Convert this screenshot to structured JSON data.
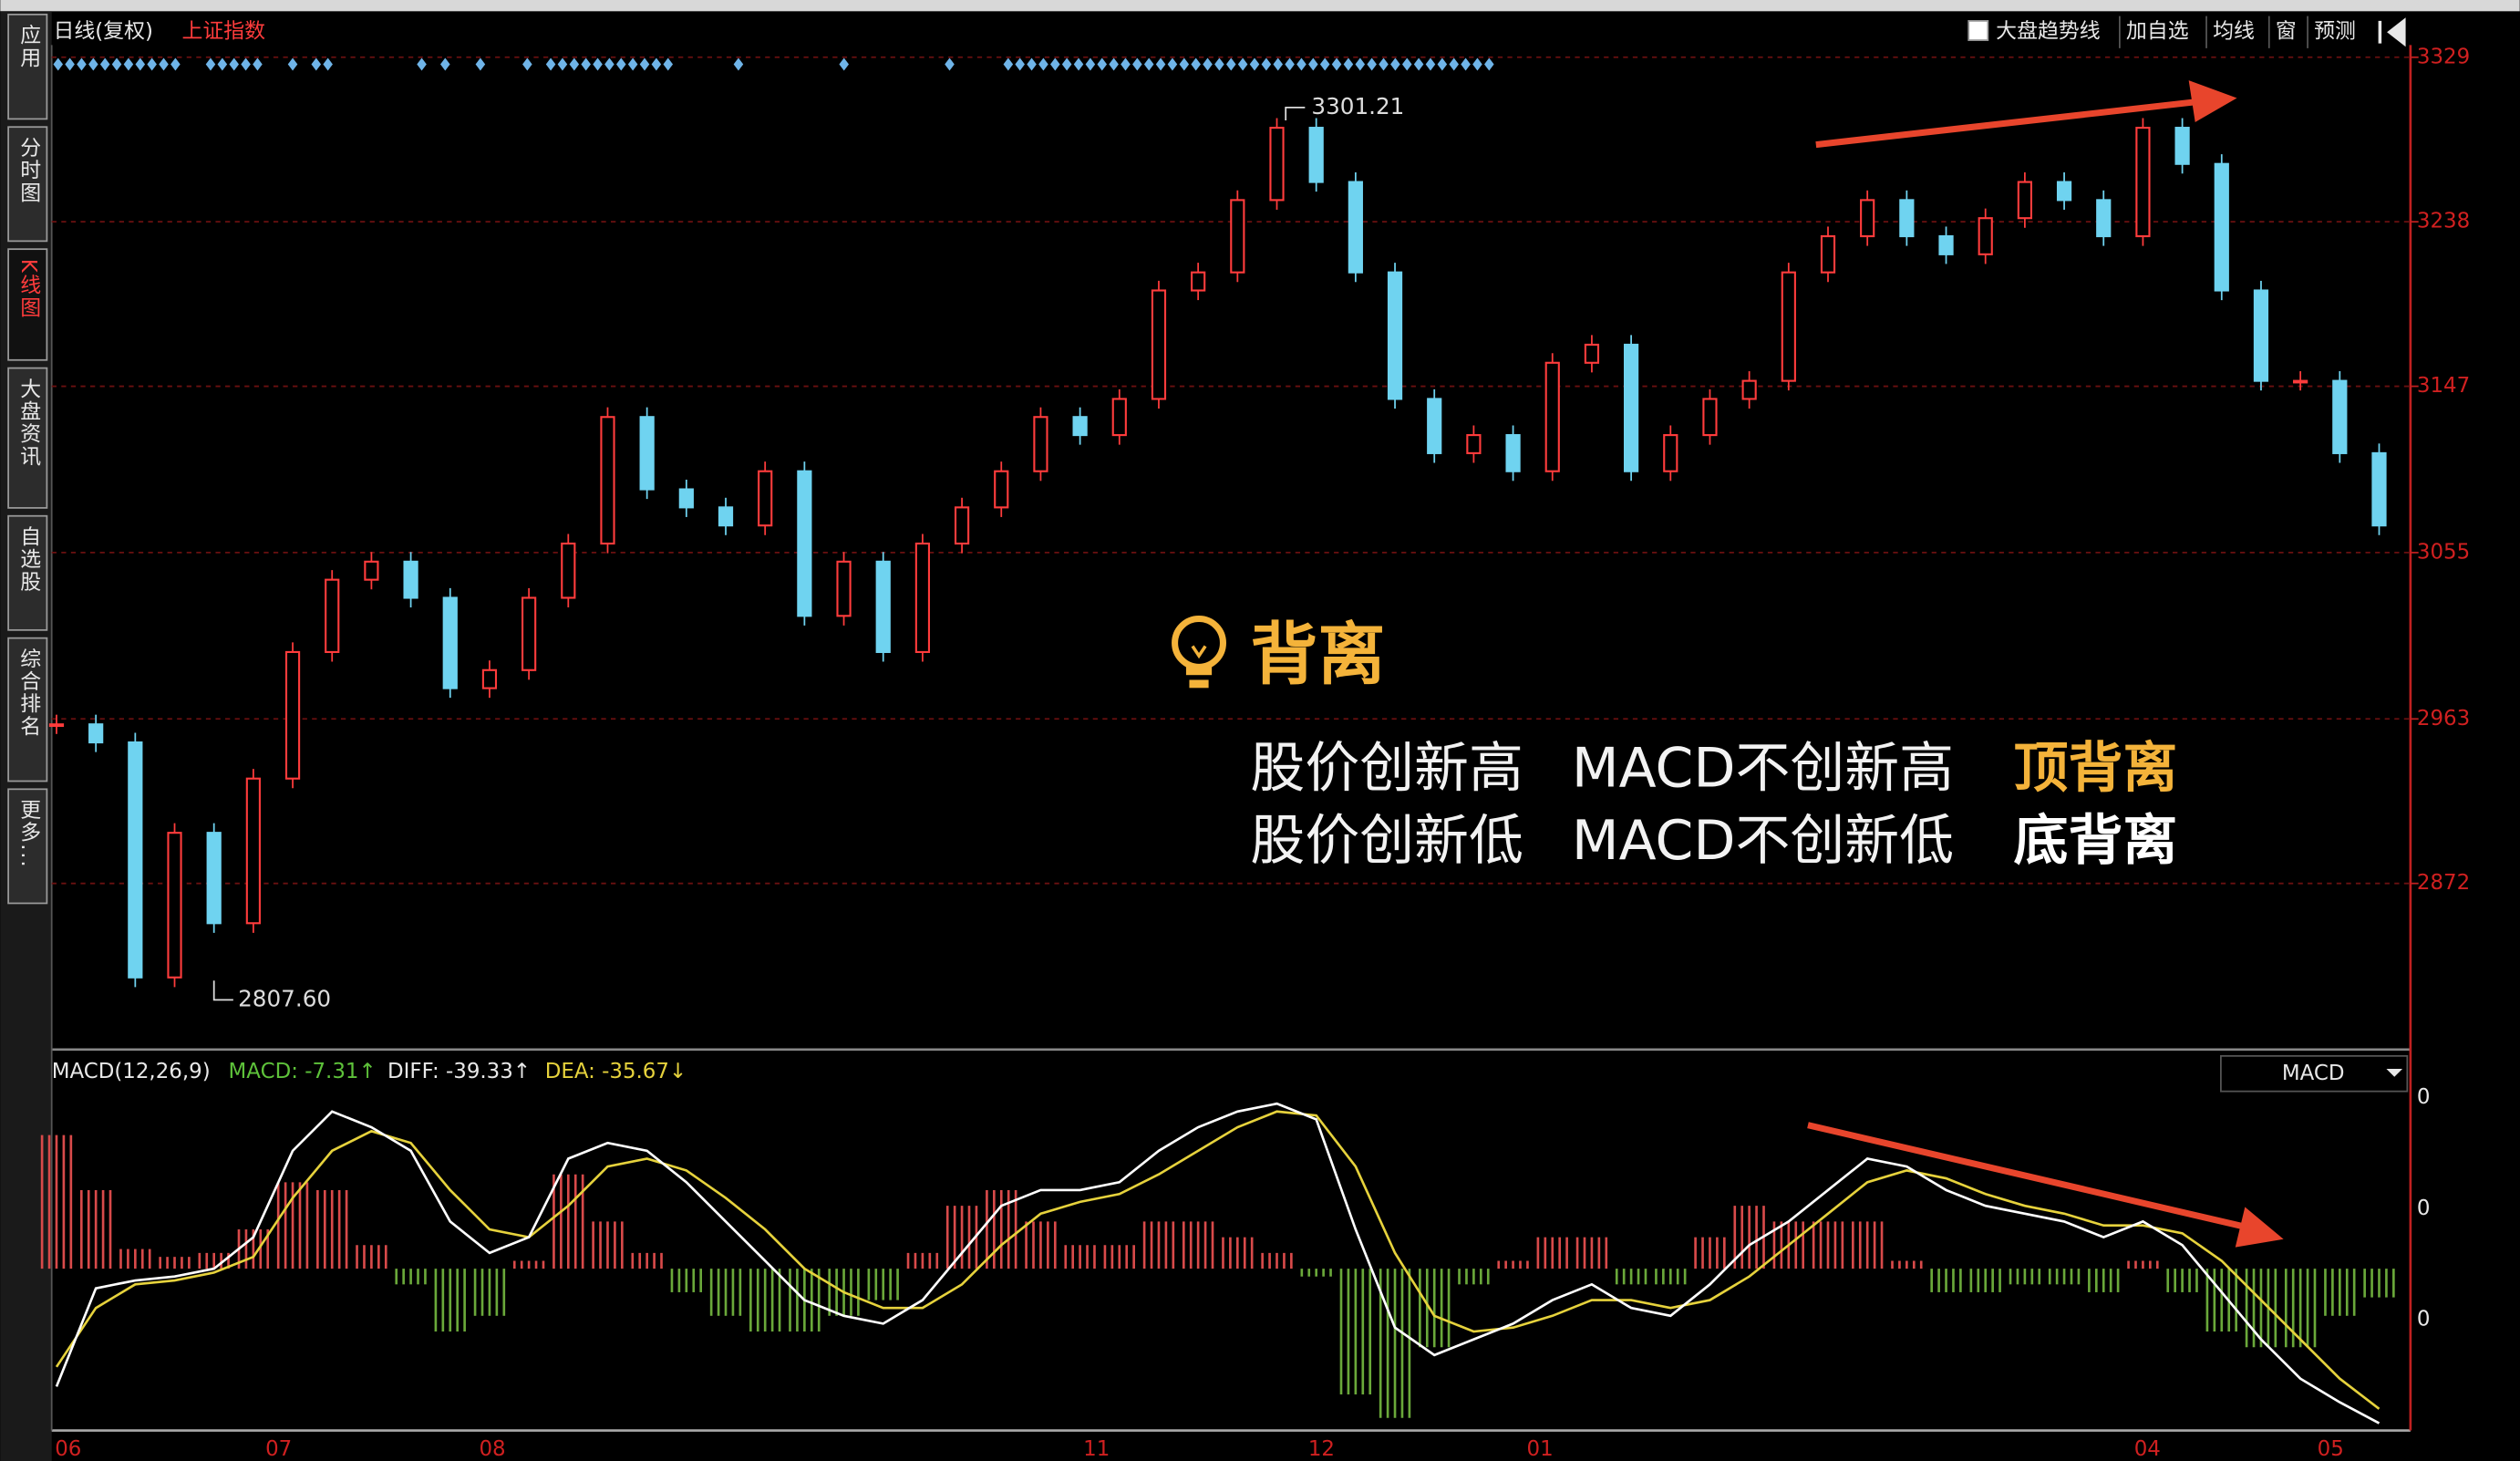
{
  "sidebar": {
    "tabs": [
      "应用",
      "分时图",
      "K线图",
      "大盘资讯",
      "自选股",
      "综合排名",
      "更多..."
    ],
    "active": 2
  },
  "header": {
    "period": "日线(复权)",
    "index": "上证指数"
  },
  "toolbar": [
    "大盘趋势线",
    "加自选",
    "均线",
    "窗",
    "预测"
  ],
  "price_chart": {
    "type": "candlestick",
    "closes": [
      2960,
      2950,
      2820,
      2900,
      2850,
      2930,
      3000,
      3040,
      3050,
      3030,
      2980,
      2990,
      3030,
      3060,
      3130,
      3090,
      3080,
      3070,
      3100,
      3020,
      3050,
      3000,
      3060,
      3080,
      3100,
      3130,
      3120,
      3140,
      3200,
      3210,
      3250,
      3290,
      3260,
      3210,
      3140,
      3110,
      3120,
      3100,
      3160,
      3170,
      3100,
      3120,
      3140,
      3150,
      3210,
      3230,
      3250,
      3230,
      3220,
      3240,
      3260,
      3250,
      3230,
      3290,
      3270,
      3200,
      3150,
      3150,
      3110,
      3070
    ],
    "up_color": "#ff3c3c",
    "down_color": "#6fd3f0",
    "ylim": [
      2781,
      3334
    ],
    "yticks": [
      3329,
      3238,
      3147,
      3055,
      2963,
      2872
    ],
    "high": {
      "value": 3301.21,
      "label": "3301.21"
    },
    "low": {
      "value": 2807.6,
      "label": "2807.60"
    },
    "grid": true
  },
  "macd_chart": {
    "type": "macd",
    "title": "MACD(12,26,9)",
    "macd_label": "MACD: -7.31↑",
    "diff_label": "DIFF: -39.33↑",
    "dea_label": "DEA: -35.67↓",
    "selector": "MACD",
    "axis_labels": [
      "0",
      "0",
      "0"
    ],
    "ylim": [
      -42,
      48
    ],
    "diff": [
      -30,
      -5,
      -3,
      -2,
      0,
      8,
      30,
      40,
      36,
      30,
      12,
      4,
      8,
      28,
      32,
      30,
      22,
      12,
      2,
      -8,
      -12,
      -14,
      -8,
      4,
      16,
      20,
      20,
      22,
      30,
      36,
      40,
      42,
      38,
      10,
      -15,
      -22,
      -18,
      -14,
      -8,
      -4,
      -10,
      -12,
      -4,
      6,
      12,
      20,
      28,
      26,
      20,
      16,
      14,
      12,
      8,
      12,
      6,
      -6,
      -18,
      -28,
      -34,
      -39.33
    ],
    "dea": [
      -25,
      -10,
      -4,
      -3,
      -1,
      3,
      18,
      30,
      35,
      32,
      20,
      10,
      8,
      16,
      26,
      28,
      25,
      18,
      10,
      0,
      -6,
      -10,
      -10,
      -4,
      6,
      14,
      17,
      19,
      24,
      30,
      36,
      40,
      39,
      26,
      4,
      -12,
      -16,
      -15,
      -12,
      -8,
      -8,
      -10,
      -8,
      -2,
      6,
      14,
      22,
      25,
      23,
      19,
      16,
      14,
      11,
      11,
      9,
      2,
      -8,
      -18,
      -28,
      -35.67
    ],
    "hist": [
      34,
      20,
      5,
      3,
      4,
      10,
      22,
      20,
      6,
      -4,
      -16,
      -12,
      2,
      24,
      12,
      4,
      -6,
      -12,
      -16,
      -16,
      -12,
      -8,
      4,
      16,
      20,
      12,
      6,
      6,
      12,
      12,
      8,
      4,
      -2,
      -32,
      -38,
      -20,
      -4,
      2,
      8,
      8,
      -4,
      -4,
      8,
      16,
      12,
      12,
      12,
      2,
      -6,
      -6,
      -4,
      -4,
      -6,
      2,
      -6,
      -16,
      -20,
      -20,
      -12,
      -7.31
    ],
    "diff_color": "#ffffff",
    "dea_color": "#e6d23c",
    "pos_color": "#d84a4a",
    "neg_color": "#6aa83a"
  },
  "x_labels": [
    "06",
    "07",
    "08",
    "11",
    "12",
    "01",
    "04",
    "05"
  ],
  "annotation": {
    "title": "背离",
    "rows": [
      {
        "left": "股价创新高",
        "middle": "MACD不创新高",
        "result": "顶背离"
      },
      {
        "left": "股价创新低",
        "middle": "MACD不创新低",
        "result": "底背离"
      }
    ]
  }
}
